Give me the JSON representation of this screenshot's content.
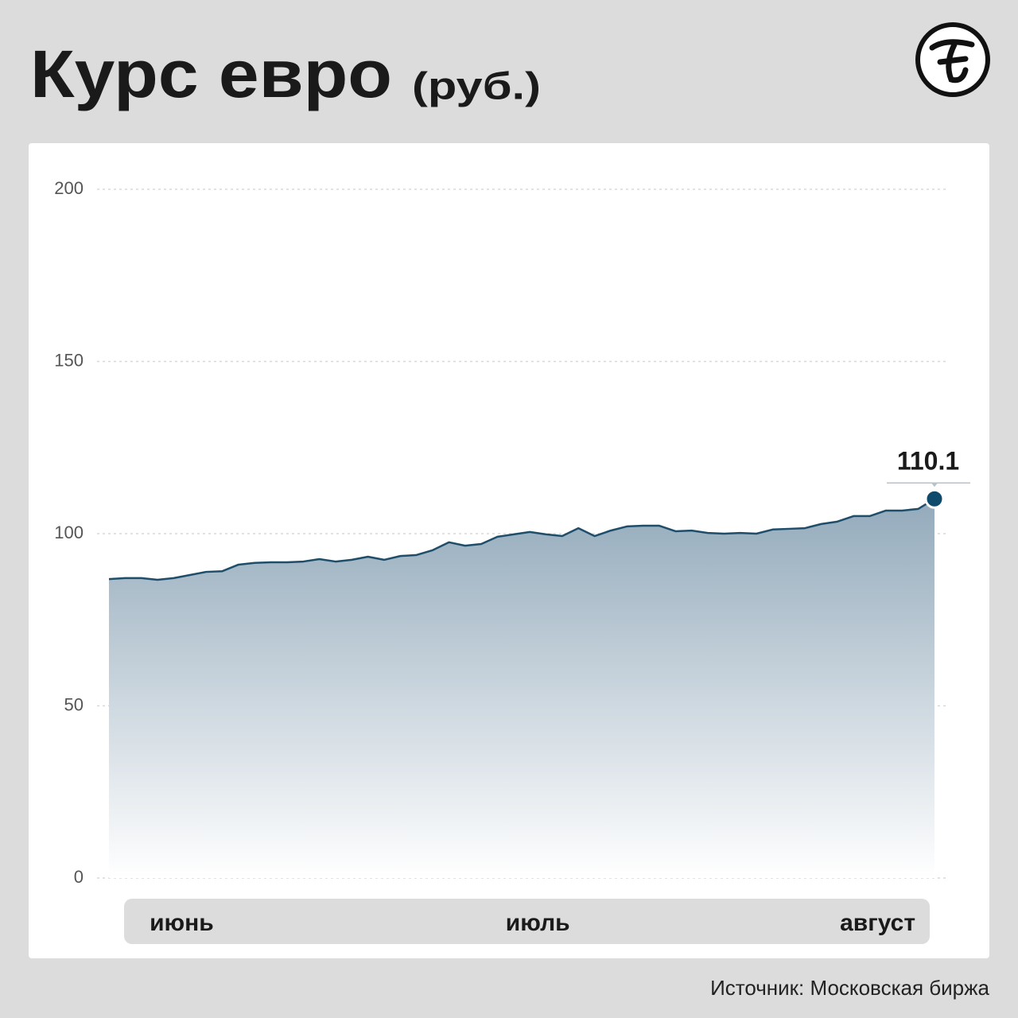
{
  "chart_data": {
    "type": "area",
    "title": "Курс евро",
    "subtitle": "(руб.)",
    "source": "Источник: Московская биржа",
    "categories": [
      null,
      null,
      null,
      null,
      "июнь",
      null,
      null,
      null,
      null,
      null,
      null,
      null,
      null,
      null,
      null,
      null,
      null,
      null,
      null,
      null,
      null,
      null,
      null,
      null,
      null,
      null,
      "июль",
      null,
      null,
      null,
      null,
      null,
      null,
      null,
      null,
      null,
      null,
      null,
      null,
      null,
      null,
      null,
      null,
      null,
      null,
      null,
      null,
      "август",
      null,
      null,
      null,
      null
    ],
    "values": [
      86.8,
      87.1,
      87.1,
      86.6,
      87.1,
      88.0,
      88.9,
      89.1,
      91.0,
      91.5,
      91.7,
      91.7,
      91.9,
      92.6,
      91.9,
      92.4,
      93.3,
      92.4,
      93.5,
      93.8,
      95.2,
      97.5,
      96.5,
      97.0,
      99.1,
      99.8,
      100.5,
      99.8,
      99.3,
      101.6,
      99.3,
      100.9,
      102.1,
      102.3,
      102.3,
      100.7,
      100.9,
      100.2,
      100.0,
      100.2,
      100.0,
      101.2,
      101.4,
      101.6,
      102.8,
      103.5,
      105.1,
      105.1,
      106.7,
      106.7,
      107.2,
      110.1
    ],
    "color": "#1f4e6b",
    "ylim": [
      0,
      200
    ],
    "yticks": [
      0,
      50,
      100,
      150,
      200
    ],
    "grid": true
  }
}
